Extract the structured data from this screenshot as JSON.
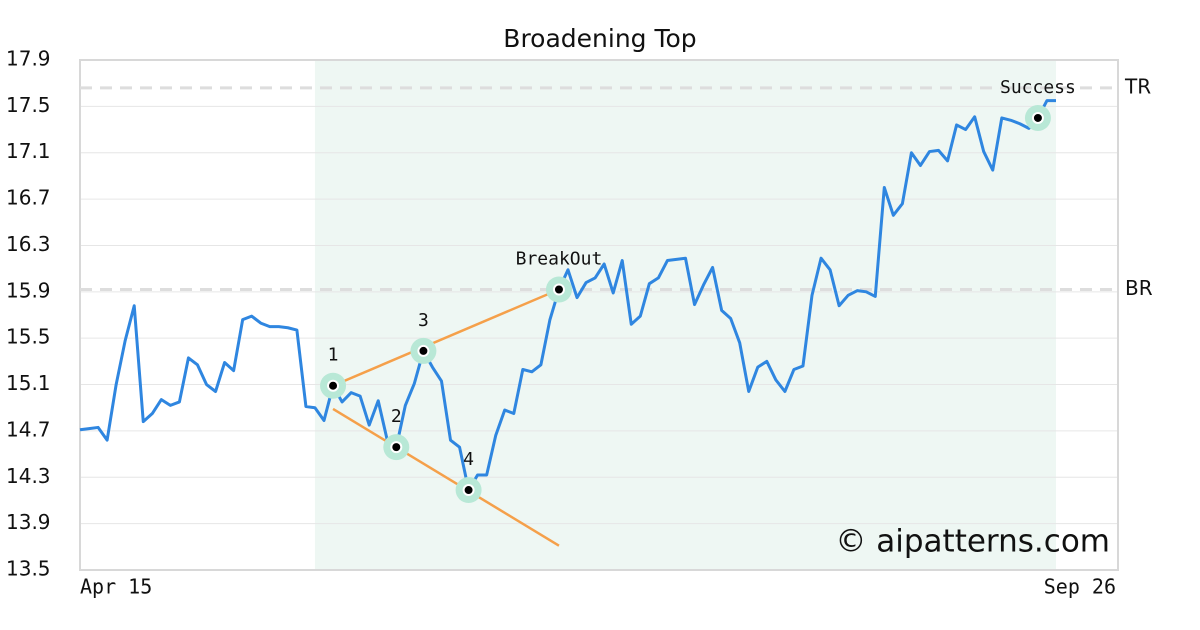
{
  "chart_data": {
    "type": "line",
    "title": "Broadening Top",
    "categories": [
      "Apr 15",
      null,
      null,
      null,
      null,
      null,
      null,
      null,
      null,
      null,
      null,
      null,
      null,
      null,
      null,
      null,
      null,
      null,
      null,
      null,
      null,
      null,
      null,
      null,
      null,
      null,
      null,
      null,
      null,
      null,
      null,
      null,
      null,
      null,
      null,
      null,
      null,
      null,
      null,
      null,
      null,
      null,
      null,
      null,
      null,
      null,
      null,
      null,
      null,
      null,
      null,
      null,
      null,
      null,
      null,
      null,
      null,
      null,
      null,
      null,
      null,
      null,
      null,
      null,
      null,
      null,
      null,
      null,
      null,
      null,
      null,
      null,
      null,
      null,
      null,
      null,
      null,
      null,
      null,
      null,
      null,
      null,
      null,
      null,
      null,
      null,
      null,
      null,
      null,
      null,
      null,
      null,
      null,
      null,
      null,
      null,
      null,
      null,
      null,
      null,
      null,
      null,
      null,
      null,
      null,
      null,
      null,
      null,
      "Sep 26"
    ],
    "values": [
      14.71,
      14.72,
      14.73,
      14.62,
      15.1,
      15.48,
      15.78,
      14.78,
      14.85,
      14.97,
      14.92,
      14.95,
      15.33,
      15.27,
      15.1,
      15.04,
      15.29,
      15.22,
      15.66,
      15.69,
      15.63,
      15.6,
      15.6,
      15.59,
      15.57,
      14.91,
      14.9,
      14.79,
      15.09,
      14.95,
      15.03,
      15.0,
      14.75,
      14.96,
      14.62,
      14.56,
      14.92,
      15.11,
      15.39,
      15.25,
      15.13,
      14.62,
      14.56,
      14.19,
      14.32,
      14.32,
      14.66,
      14.88,
      14.85,
      15.23,
      15.21,
      15.27,
      15.66,
      15.92,
      16.09,
      15.85,
      15.98,
      16.02,
      16.14,
      15.89,
      16.17,
      15.62,
      15.69,
      15.97,
      16.02,
      16.17,
      16.18,
      16.19,
      15.79,
      15.96,
      16.11,
      15.74,
      15.67,
      15.46,
      15.04,
      15.25,
      15.3,
      15.14,
      15.04,
      15.23,
      15.26,
      15.87,
      16.19,
      16.09,
      15.78,
      15.87,
      15.91,
      15.9,
      15.86,
      16.8,
      16.56,
      16.66,
      17.1,
      16.99,
      17.11,
      17.12,
      17.03,
      17.34,
      17.3,
      17.41,
      17.11,
      16.95,
      17.4,
      17.38,
      17.35,
      17.31,
      17.4,
      17.55,
      17.55
    ],
    "color": "#2f86e0",
    "ylim": [
      13.5,
      17.9
    ],
    "yticks": [
      13.5,
      13.9,
      14.3,
      14.7,
      15.1,
      15.5,
      15.9,
      16.3,
      16.7,
      17.1,
      17.5,
      17.9
    ],
    "grid": true,
    "shade": {
      "color": "#eef7f3",
      "x": [
        26,
        108
      ]
    },
    "levels": [
      {
        "label": "TR",
        "value": 17.66
      },
      {
        "label": "BR",
        "value": 15.92
      }
    ],
    "trendlines": [
      {
        "color": "#f5a04a",
        "x": [
          28,
          53
        ],
        "values": [
          15.09,
          15.92
        ]
      },
      {
        "color": "#f5a04a",
        "x": [
          28,
          53
        ],
        "values": [
          14.89,
          13.71
        ]
      }
    ],
    "patterns": [
      {
        "label": "1",
        "index": 28,
        "value": 15.09
      },
      {
        "label": "2",
        "index": 35,
        "value": 14.56
      },
      {
        "label": "3",
        "index": 38,
        "value": 15.39
      },
      {
        "label": "4",
        "index": 43,
        "value": 14.19
      },
      {
        "label": "BreakOut",
        "index": 53,
        "value": 15.92
      },
      {
        "label": "Success",
        "index": 106,
        "value": 17.4
      }
    ],
    "watermark": "© aipatterns.com"
  }
}
